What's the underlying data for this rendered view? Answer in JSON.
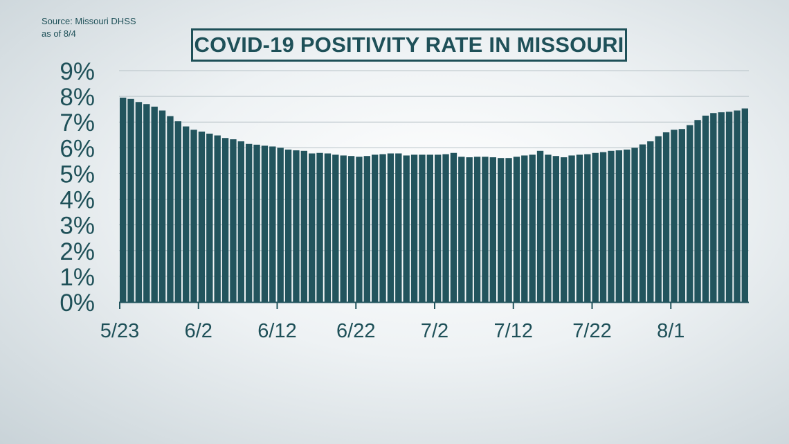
{
  "source": {
    "line1": "Source: Missouri DHSS",
    "line2": "as of 8/4"
  },
  "colors": {
    "bar": "#22545d",
    "text": "#1e5058",
    "grid": "#b7c2c7",
    "axis": "#22545d"
  },
  "chart_data": {
    "type": "bar",
    "title": "COVID-19 POSITIVITY RATE IN MISSOURI",
    "xlabel": "",
    "ylabel": "",
    "ylim": [
      0,
      9
    ],
    "yticks": [
      0,
      1,
      2,
      3,
      4,
      5,
      6,
      7,
      8,
      9
    ],
    "ytick_labels": [
      "0%",
      "1%",
      "2%",
      "3%",
      "4%",
      "5%",
      "6%",
      "7%",
      "8%",
      "9%"
    ],
    "x_start": "5/23",
    "x_end": "8/4",
    "xtick_labels": [
      "5/23",
      "6/2",
      "6/12",
      "6/22",
      "7/2",
      "7/12",
      "7/22",
      "8/1"
    ],
    "grid": "horizontal",
    "series": [
      {
        "values": [
          7.95,
          7.9,
          7.78,
          7.7,
          7.6,
          7.45,
          7.23,
          7.03,
          6.83,
          6.7,
          6.63,
          6.55,
          6.48,
          6.38,
          6.33,
          6.25,
          6.15,
          6.12,
          6.08,
          6.05,
          6.0,
          5.93,
          5.9,
          5.88,
          5.78,
          5.8,
          5.78,
          5.73,
          5.7,
          5.68,
          5.65,
          5.68,
          5.73,
          5.75,
          5.78,
          5.78,
          5.7,
          5.73,
          5.73,
          5.73,
          5.73,
          5.75,
          5.8,
          5.65,
          5.63,
          5.65,
          5.65,
          5.63,
          5.6,
          5.6,
          5.65,
          5.7,
          5.73,
          5.88,
          5.73,
          5.68,
          5.63,
          5.7,
          5.73,
          5.75,
          5.8,
          5.83,
          5.88,
          5.9,
          5.93,
          6.0,
          6.13,
          6.25,
          6.45,
          6.6,
          6.7,
          6.73,
          6.88,
          7.08,
          7.25,
          7.35,
          7.38,
          7.4,
          7.45,
          7.53
        ]
      }
    ]
  }
}
